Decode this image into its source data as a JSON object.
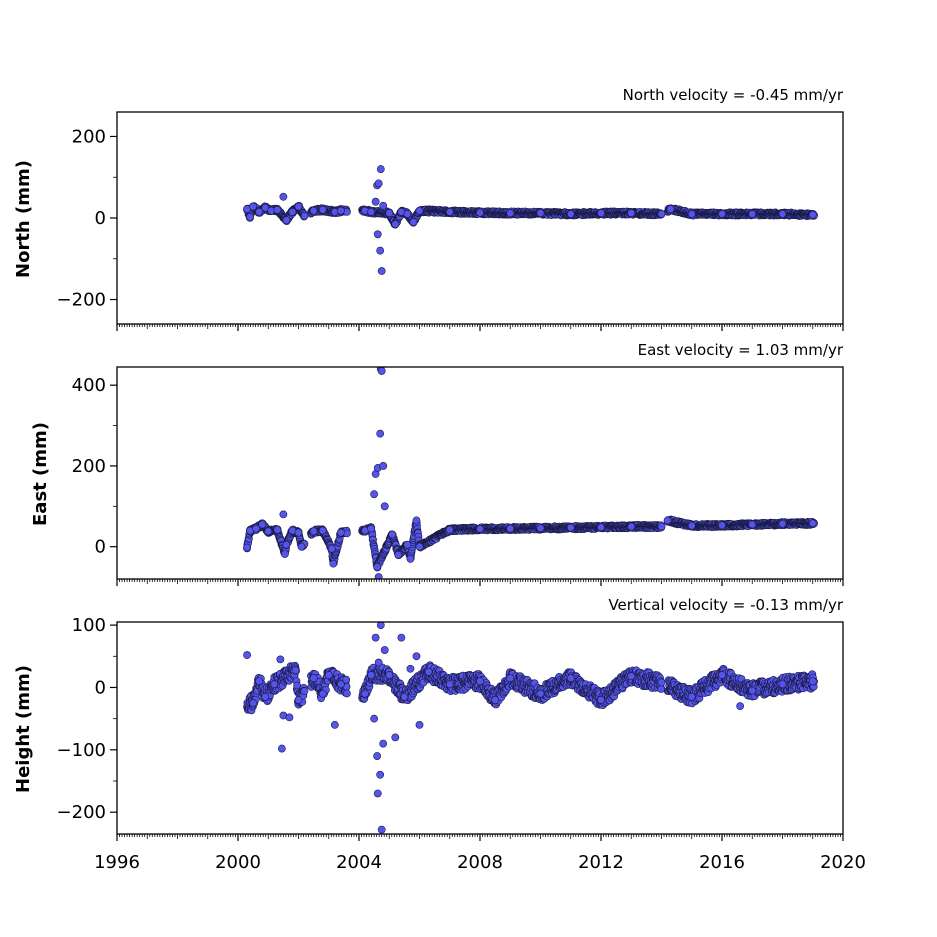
{
  "chart_data": [
    {
      "type": "scatter",
      "title": "North velocity = -0.45 mm/yr",
      "ylabel": "North (mm)",
      "ylim": [
        -260,
        260
      ],
      "yticks": [
        -200,
        0,
        200
      ],
      "yticklabels": [
        "−200",
        "0",
        "200"
      ],
      "xlim": [
        1996,
        2020
      ],
      "series": [
        {
          "marker_color": "#5555ee",
          "points": [
            [
              2000.3,
              22
            ],
            [
              2000.4,
              3
            ],
            [
              2000.5,
              28
            ],
            [
              2000.7,
              15
            ],
            [
              2000.9,
              25
            ],
            [
              2001.1,
              18
            ],
            [
              2001.3,
              20
            ],
            [
              2001.5,
              52
            ],
            [
              2001.6,
              -5
            ],
            [
              2001.8,
              15
            ],
            [
              2002.0,
              28
            ],
            [
              2002.2,
              5
            ],
            [
              2002.5,
              18
            ],
            [
              2002.8,
              20
            ],
            [
              2003.2,
              15
            ],
            [
              2003.4,
              18
            ],
            [
              2004.2,
              18
            ],
            [
              2004.4,
              15
            ],
            [
              2004.55,
              40
            ],
            [
              2004.6,
              80
            ],
            [
              2004.62,
              -40
            ],
            [
              2004.65,
              85
            ],
            [
              2004.7,
              -80
            ],
            [
              2004.72,
              120
            ],
            [
              2004.75,
              -130
            ],
            [
              2004.8,
              30
            ],
            [
              2005.0,
              12
            ],
            [
              2005.2,
              -15
            ],
            [
              2005.4,
              15
            ],
            [
              2005.6,
              10
            ],
            [
              2005.8,
              -10
            ],
            [
              2006.0,
              18
            ],
            [
              2007.0,
              15
            ],
            [
              2008.0,
              13
            ],
            [
              2009.0,
              12
            ],
            [
              2010.0,
              12
            ],
            [
              2011.0,
              10
            ],
            [
              2012.0,
              12
            ],
            [
              2013.0,
              12
            ],
            [
              2014.0,
              10
            ],
            [
              2014.3,
              22
            ],
            [
              2015.0,
              10
            ],
            [
              2016.0,
              10
            ],
            [
              2017.0,
              10
            ],
            [
              2018.0,
              10
            ],
            [
              2019.0,
              8
            ]
          ]
        }
      ]
    },
    {
      "type": "scatter",
      "title": "East velocity = 1.03 mm/yr",
      "ylabel": "East (mm)",
      "ylim": [
        -80,
        445
      ],
      "yticks": [
        0,
        200,
        400
      ],
      "yticklabels": [
        "0",
        "200",
        "400"
      ],
      "xlim": [
        1996,
        2020
      ],
      "series": [
        {
          "marker_color": "#5555ee",
          "points": [
            [
              2000.3,
              -2
            ],
            [
              2000.4,
              40
            ],
            [
              2000.6,
              45
            ],
            [
              2000.8,
              55
            ],
            [
              2001.0,
              38
            ],
            [
              2001.3,
              42
            ],
            [
              2001.5,
              80
            ],
            [
              2001.55,
              -18
            ],
            [
              2001.6,
              5
            ],
            [
              2001.8,
              40
            ],
            [
              2002.0,
              35
            ],
            [
              2002.1,
              0
            ],
            [
              2002.5,
              38
            ],
            [
              2002.8,
              40
            ],
            [
              2003.1,
              -5
            ],
            [
              2003.15,
              -42
            ],
            [
              2003.4,
              35
            ],
            [
              2004.2,
              40
            ],
            [
              2004.4,
              45
            ],
            [
              2004.5,
              130
            ],
            [
              2004.55,
              180
            ],
            [
              2004.6,
              -50
            ],
            [
              2004.62,
              195
            ],
            [
              2004.65,
              -75
            ],
            [
              2004.7,
              280
            ],
            [
              2004.72,
              440
            ],
            [
              2004.75,
              435
            ],
            [
              2004.8,
              200
            ],
            [
              2004.85,
              100
            ],
            [
              2005.1,
              30
            ],
            [
              2005.3,
              -20
            ],
            [
              2005.6,
              5
            ],
            [
              2005.7,
              -30
            ],
            [
              2005.9,
              65
            ],
            [
              2006.0,
              0
            ],
            [
              2007.0,
              42
            ],
            [
              2008.0,
              44
            ],
            [
              2009.0,
              45
            ],
            [
              2010.0,
              46
            ],
            [
              2011.0,
              47
            ],
            [
              2012.0,
              48
            ],
            [
              2013.0,
              50
            ],
            [
              2014.0,
              50
            ],
            [
              2014.2,
              65
            ],
            [
              2015.0,
              52
            ],
            [
              2016.0,
              53
            ],
            [
              2017.0,
              55
            ],
            [
              2018.0,
              57
            ],
            [
              2019.0,
              58
            ]
          ]
        }
      ]
    },
    {
      "type": "scatter",
      "title": "Vertical velocity = -0.13 mm/yr",
      "ylabel": "Height (mm)",
      "ylim": [
        -235,
        105
      ],
      "yticks": [
        -200,
        -100,
        0,
        100
      ],
      "yticklabels": [
        "−200",
        "−100",
        "0",
        "100"
      ],
      "xlim": [
        1996,
        2020
      ],
      "series": [
        {
          "marker_color": "#5555ee",
          "points": [
            [
              2000.3,
              52
            ],
            [
              2000.5,
              -25
            ],
            [
              2000.7,
              10
            ],
            [
              2000.9,
              -15
            ],
            [
              2001.2,
              5
            ],
            [
              2001.4,
              45
            ],
            [
              2001.45,
              -98
            ],
            [
              2001.5,
              -45
            ],
            [
              2001.7,
              -48
            ],
            [
              2001.9,
              28
            ],
            [
              2002.0,
              -20
            ],
            [
              2002.5,
              15
            ],
            [
              2002.8,
              -10
            ],
            [
              2003.0,
              20
            ],
            [
              2003.2,
              -60
            ],
            [
              2003.4,
              5
            ],
            [
              2004.2,
              -10
            ],
            [
              2004.4,
              20
            ],
            [
              2004.5,
              -50
            ],
            [
              2004.55,
              80
            ],
            [
              2004.6,
              -110
            ],
            [
              2004.62,
              -170
            ],
            [
              2004.65,
              40
            ],
            [
              2004.7,
              -140
            ],
            [
              2004.72,
              100
            ],
            [
              2004.75,
              -228
            ],
            [
              2004.8,
              -90
            ],
            [
              2004.85,
              60
            ],
            [
              2005.0,
              20
            ],
            [
              2005.2,
              -80
            ],
            [
              2005.4,
              80
            ],
            [
              2005.5,
              -15
            ],
            [
              2005.7,
              30
            ],
            [
              2005.9,
              50
            ],
            [
              2006.0,
              -60
            ],
            [
              2006.3,
              25
            ],
            [
              2007.0,
              5
            ],
            [
              2008.0,
              10
            ],
            [
              2008.5,
              -20
            ],
            [
              2009.0,
              15
            ],
            [
              2010.0,
              -10
            ],
            [
              2011.0,
              15
            ],
            [
              2012.0,
              -20
            ],
            [
              2013.0,
              18
            ],
            [
              2014.0,
              8
            ],
            [
              2015.0,
              -15
            ],
            [
              2016.0,
              20
            ],
            [
              2016.6,
              -30
            ],
            [
              2017.0,
              -5
            ],
            [
              2018.0,
              5
            ],
            [
              2019.0,
              10
            ]
          ]
        }
      ]
    }
  ],
  "x_axis": {
    "ticks": [
      1996,
      2000,
      2004,
      2008,
      2012,
      2016,
      2020
    ],
    "ticklabels": [
      "1996",
      "2000",
      "2004",
      "2008",
      "2012",
      "2016",
      "2020"
    ]
  }
}
